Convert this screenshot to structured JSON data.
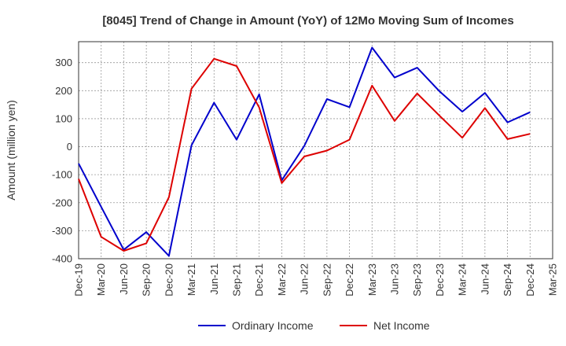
{
  "chart_data": {
    "type": "line",
    "title": "[8045]  Trend of Change in Amount (YoY) of 12Mo Moving Sum of Incomes",
    "xlabel": "",
    "ylabel": "Amount (million yen)",
    "ylim": [
      -400,
      375
    ],
    "yticks": [
      -400,
      -300,
      -200,
      -100,
      0,
      100,
      200,
      300
    ],
    "grid": true,
    "legend_position": "bottom",
    "categories": [
      "Dec-19",
      "Mar-20",
      "Jun-20",
      "Sep-20",
      "Dec-20",
      "Mar-21",
      "Jun-21",
      "Sep-21",
      "Dec-21",
      "Mar-22",
      "Jun-22",
      "Sep-22",
      "Dec-22",
      "Mar-23",
      "Jun-23",
      "Sep-23",
      "Dec-23",
      "Mar-24",
      "Jun-24",
      "Sep-24",
      "Dec-24",
      "Mar-25"
    ],
    "series": [
      {
        "name": "Ordinary Income",
        "color": "#0000cc",
        "values": [
          -60,
          -215,
          -368,
          -305,
          -390,
          5,
          157,
          25,
          187,
          -120,
          3,
          170,
          141,
          354,
          247,
          282,
          197,
          125,
          192,
          87,
          123,
          null
        ]
      },
      {
        "name": "Net Income",
        "color": "#dd0000",
        "values": [
          -115,
          -322,
          -372,
          -345,
          -180,
          207,
          314,
          288,
          140,
          -130,
          -35,
          -14,
          25,
          218,
          92,
          190,
          110,
          32,
          138,
          27,
          46,
          null
        ]
      }
    ]
  }
}
